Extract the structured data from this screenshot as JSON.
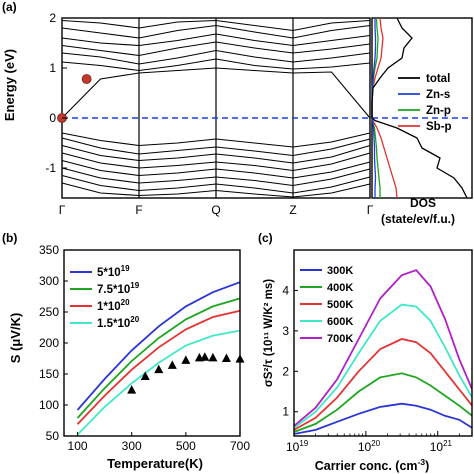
{
  "panels": {
    "a": "(a)",
    "b": "(b)",
    "c": "(c)"
  },
  "chart_data": [
    {
      "panel": "(a)",
      "type": "line",
      "subtitle": "band structure",
      "ylabel": "Energy (eV)",
      "ylim": [
        -1.6,
        2.0
      ],
      "yticks": [
        -1,
        0,
        1,
        2
      ],
      "kpoints": [
        "Γ",
        "F",
        "Q",
        "Z",
        "Γ"
      ],
      "fermi_level": 0,
      "marked_points": [
        {
          "k": 0.0,
          "energy": 0.0
        },
        {
          "k": 0.08,
          "energy": 0.78
        }
      ],
      "bands": [
        [
          1.95,
          1.9,
          1.8,
          1.92,
          1.95,
          1.85,
          1.75,
          1.9,
          1.95
        ],
        [
          1.8,
          1.7,
          1.6,
          1.75,
          1.85,
          1.72,
          1.6,
          1.75,
          1.85
        ],
        [
          1.6,
          1.5,
          1.45,
          1.55,
          1.68,
          1.55,
          1.45,
          1.55,
          1.65
        ],
        [
          1.45,
          1.35,
          1.25,
          1.4,
          1.52,
          1.4,
          1.3,
          1.38,
          1.48
        ],
        [
          1.3,
          1.22,
          1.08,
          1.2,
          1.35,
          1.22,
          1.12,
          1.2,
          1.3
        ],
        [
          1.12,
          1.05,
          0.95,
          1.05,
          1.18,
          1.05,
          0.98,
          1.02,
          1.1
        ],
        [
          0.0,
          0.78,
          0.9,
          0.95,
          1.0,
          0.95,
          0.9,
          0.92,
          0.0
        ],
        [
          -0.3,
          -0.45,
          -0.55,
          -0.5,
          -0.42,
          -0.5,
          -0.58,
          -0.48,
          -0.3
        ],
        [
          -0.4,
          -0.6,
          -0.72,
          -0.65,
          -0.58,
          -0.66,
          -0.75,
          -0.62,
          -0.42
        ],
        [
          -0.55,
          -0.75,
          -0.85,
          -0.8,
          -0.72,
          -0.8,
          -0.9,
          -0.78,
          -0.55
        ],
        [
          -0.7,
          -0.9,
          -1.0,
          -0.95,
          -0.88,
          -0.95,
          -1.05,
          -0.92,
          -0.7
        ],
        [
          -0.85,
          -1.05,
          -1.15,
          -1.1,
          -1.02,
          -1.1,
          -1.2,
          -1.08,
          -0.88
        ],
        [
          -1.0,
          -1.2,
          -1.3,
          -1.25,
          -1.18,
          -1.25,
          -1.35,
          -1.22,
          -1.02
        ],
        [
          -1.15,
          -1.35,
          -1.45,
          -1.4,
          -1.32,
          -1.4,
          -1.5,
          -1.38,
          -1.18
        ],
        [
          -1.3,
          -1.5,
          -1.55,
          -1.52,
          -1.45,
          -1.52,
          -1.58,
          -1.5,
          -1.32
        ]
      ]
    },
    {
      "panel": "(a)",
      "type": "line",
      "subtitle": "DOS",
      "xlabel": "DOS",
      "xlabel2": "(state/ev/f.u.)",
      "energy": [
        -1.6,
        -1.4,
        -1.2,
        -1.0,
        -0.8,
        -0.6,
        -0.4,
        -0.2,
        -0.05,
        0.0,
        0.3,
        0.6,
        0.8,
        1.0,
        1.2,
        1.4,
        1.6,
        1.8,
        2.0
      ],
      "series": [
        {
          "name": "total",
          "color": "#000000",
          "values": [
            9.5,
            9.0,
            8.2,
            6.5,
            6.8,
            5.0,
            4.5,
            2.5,
            0.3,
            0.0,
            0.0,
            0.1,
            0.8,
            1.6,
            3.0,
            3.2,
            4.0,
            3.0,
            2.5
          ]
        },
        {
          "name": "Zn-s",
          "color": "#1f3fdc",
          "values": [
            0.3,
            0.3,
            0.35,
            0.3,
            0.25,
            0.25,
            0.2,
            0.15,
            0.05,
            0.0,
            0.0,
            0.02,
            0.1,
            0.2,
            0.3,
            0.35,
            0.35,
            0.3,
            0.3
          ]
        },
        {
          "name": "Zn-p",
          "color": "#1aa51a",
          "values": [
            0.8,
            0.8,
            0.7,
            0.6,
            0.5,
            0.45,
            0.35,
            0.25,
            0.05,
            0.0,
            0.0,
            0.05,
            0.15,
            0.3,
            0.5,
            0.55,
            0.6,
            0.5,
            0.45
          ]
        },
        {
          "name": "Sb-p",
          "color": "#e03030",
          "values": [
            2.5,
            2.4,
            2.1,
            1.8,
            1.5,
            1.2,
            0.9,
            0.5,
            0.1,
            0.0,
            0.0,
            0.08,
            0.3,
            0.6,
            0.9,
            1.0,
            1.1,
            0.9,
            0.8
          ]
        }
      ]
    },
    {
      "panel": "(b)",
      "type": "line",
      "xlabel": "Temperature(K)",
      "ylabel": "S (μV/K)",
      "xlim": [
        50,
        700
      ],
      "ylim": [
        50,
        350
      ],
      "xticks": [
        100,
        300,
        500,
        700
      ],
      "yticks": [
        50,
        100,
        150,
        200,
        250,
        300,
        350
      ],
      "legend": "top-left",
      "x": [
        100,
        200,
        300,
        400,
        500,
        600,
        700
      ],
      "series": [
        {
          "name": "5*10^19",
          "label_base": "5*10",
          "label_exp": "19",
          "color": "#2b35d6",
          "values": [
            92,
            142,
            188,
            227,
            259,
            282,
            298
          ]
        },
        {
          "name": "7.5*10^19",
          "label_base": "7.5*10",
          "label_exp": "19",
          "color": "#1fa51f",
          "values": [
            79,
            127,
            171,
            208,
            238,
            259,
            272
          ]
        },
        {
          "name": "1*10^20",
          "label_base": "1*10",
          "label_exp": "20",
          "color": "#e53333",
          "values": [
            69,
            115,
            157,
            193,
            222,
            242,
            252
          ]
        },
        {
          "name": "1.5*10^20",
          "label_base": "1.5*10",
          "label_exp": "20",
          "color": "#40e8c8",
          "values": [
            52,
            97,
            135,
            168,
            196,
            212,
            220
          ]
        }
      ],
      "experiment": {
        "marker": "triangle",
        "x": [
          300,
          350,
          400,
          450,
          500,
          550,
          570,
          600,
          650,
          700
        ],
        "y": [
          124,
          146,
          157,
          164,
          172,
          176,
          177,
          176,
          175,
          174
        ]
      }
    },
    {
      "panel": "(c)",
      "type": "line",
      "xlabel": "Carrier conc. (cm",
      "xlabel_exp": "-3",
      "xlabel_end": ")",
      "ylabel": "σS²/τ (10¹¹ W/K² ms)",
      "xscale": "log",
      "xlim": [
        1e+19,
        3e+21
      ],
      "ylim": [
        0.4,
        5.0
      ],
      "yticks": [
        1,
        2,
        3,
        4
      ],
      "xticks": [
        {
          "base": "10",
          "exp": "19",
          "value": 1e+19
        },
        {
          "base": "10",
          "exp": "20",
          "value": 1e+20
        },
        {
          "base": "10",
          "exp": "21",
          "value": 1e+21
        }
      ],
      "legend": "top-left",
      "logx": [
        19.0,
        19.3,
        19.6,
        19.9,
        20.2,
        20.5,
        20.7,
        20.9,
        21.1,
        21.3,
        21.48
      ],
      "series": [
        {
          "name": "300K",
          "color": "#2b35d6",
          "values": [
            0.45,
            0.55,
            0.75,
            0.95,
            1.12,
            1.2,
            1.15,
            1.05,
            0.9,
            0.8,
            0.6
          ]
        },
        {
          "name": "400K",
          "color": "#1fa51f",
          "values": [
            0.5,
            0.7,
            1.05,
            1.5,
            1.85,
            1.95,
            1.85,
            1.65,
            1.4,
            1.15,
            0.9
          ]
        },
        {
          "name": "500K",
          "color": "#e53333",
          "values": [
            0.55,
            0.85,
            1.35,
            2.0,
            2.55,
            2.8,
            2.72,
            2.45,
            2.0,
            1.55,
            1.15
          ]
        },
        {
          "name": "600K",
          "color": "#40e8c8",
          "values": [
            0.6,
            1.0,
            1.6,
            2.45,
            3.25,
            3.65,
            3.6,
            3.25,
            2.6,
            1.9,
            1.35
          ]
        },
        {
          "name": "700K",
          "color": "#b020c8",
          "values": [
            0.65,
            1.1,
            1.8,
            2.8,
            3.8,
            4.38,
            4.5,
            4.1,
            3.3,
            2.3,
            1.55
          ]
        }
      ]
    }
  ]
}
